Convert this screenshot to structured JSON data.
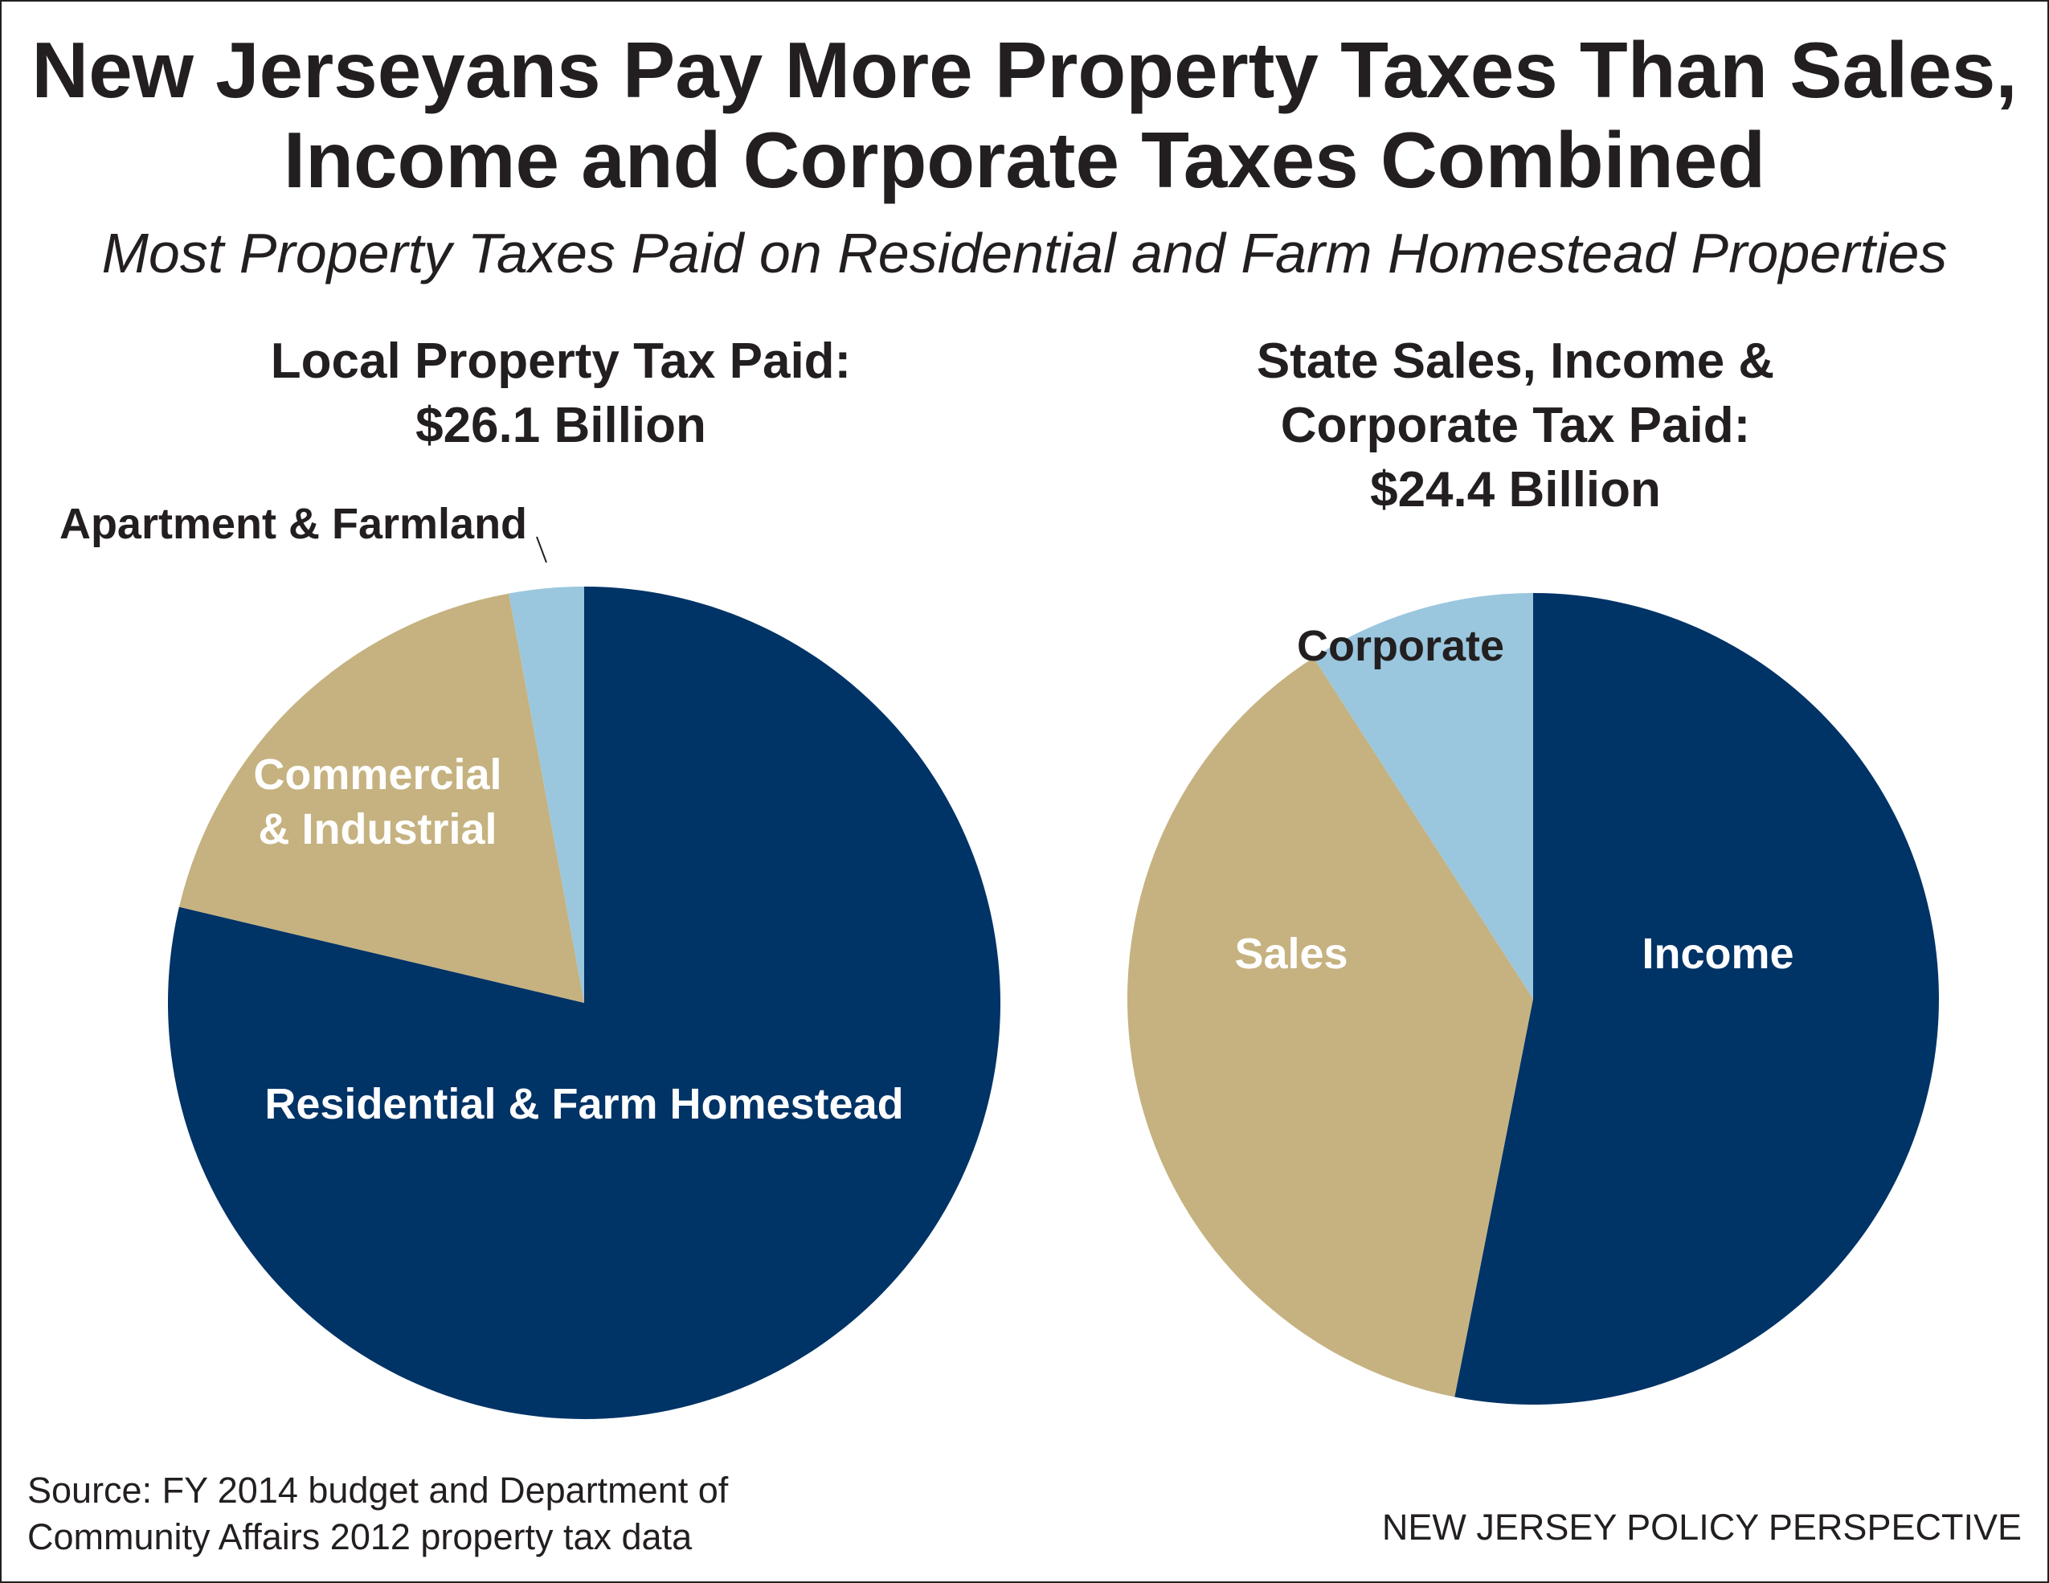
{
  "title_line1": "New Jerseyans Pay More Property Taxes Than Sales,",
  "title_line2": "Income and Corporate Taxes Combined",
  "subtitle": "Most Property Taxes Paid on Residential and Farm Homestead Properties",
  "chart_data": [
    {
      "type": "pie",
      "title_lines": [
        "Local Property Tax Paid:",
        "$26.1 Billion"
      ],
      "total_billion": 26.1,
      "slices": [
        {
          "label": "Residential & Farm Homestead",
          "value": 78.7,
          "color": "#003366",
          "label_color": "#ffffff"
        },
        {
          "label": "Commercial & Industrial",
          "value": 18.4,
          "color": "#c5b280",
          "label_color": "#ffffff"
        },
        {
          "label": "Apartment & Farmland",
          "value": 2.9,
          "color": "#9ac7de",
          "label_color": "#231f20"
        }
      ]
    },
    {
      "type": "pie",
      "title_lines": [
        "State Sales, Income &",
        "Corporate Tax Paid:",
        "$24.4 Billion"
      ],
      "total_billion": 24.4,
      "slices": [
        {
          "label": "Income",
          "value": 53.1,
          "color": "#003366",
          "label_color": "#ffffff"
        },
        {
          "label": "Sales",
          "value": 37.8,
          "color": "#c5b280",
          "label_color": "#ffffff"
        },
        {
          "label": "Corporate",
          "value": 9.1,
          "color": "#9ac7de",
          "label_color": "#231f20"
        }
      ]
    }
  ],
  "source_line1": "Source: FY 2014 budget and Department of",
  "source_line2": "Community Affairs 2012 property tax data",
  "credit": "NEW JERSEY POLICY PERSPECTIVE"
}
